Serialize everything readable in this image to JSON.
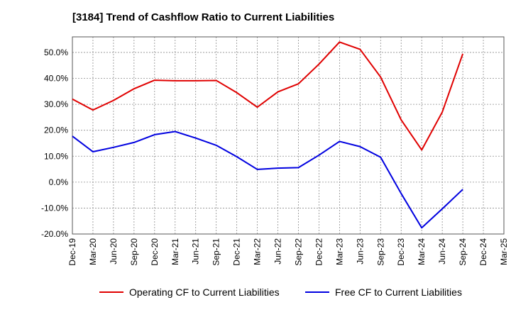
{
  "chart_data": {
    "type": "line",
    "title": "[3184]  Trend of Cashflow Ratio to Current Liabilities",
    "xlabel": "",
    "ylabel": "",
    "categories": [
      "Dec-19",
      "Mar-20",
      "Jun-20",
      "Sep-20",
      "Dec-20",
      "Mar-21",
      "Jun-21",
      "Sep-21",
      "Dec-21",
      "Mar-22",
      "Jun-22",
      "Sep-22",
      "Dec-22",
      "Mar-23",
      "Jun-23",
      "Sep-23",
      "Dec-23",
      "Mar-24",
      "Jun-24",
      "Sep-24",
      "Dec-24",
      "Mar-25"
    ],
    "ylim": [
      -20,
      56
    ],
    "yticks": [
      -20,
      -10,
      0,
      10,
      20,
      30,
      40,
      50
    ],
    "ytick_labels": [
      "-20.0%",
      "-10.0%",
      "0.0%",
      "10.0%",
      "20.0%",
      "30.0%",
      "40.0%",
      "50.0%"
    ],
    "grid": true,
    "legend_position": "bottom",
    "series": [
      {
        "name": "Operating CF to Current Liabilities",
        "color": "#e00000",
        "values": [
          32.0,
          27.8,
          31.5,
          36.0,
          39.3,
          39.1,
          39.1,
          39.2,
          34.5,
          28.9,
          34.8,
          37.9,
          45.5,
          54.0,
          51.2,
          40.5,
          24.0,
          12.4,
          27.0,
          49.5,
          null,
          null
        ]
      },
      {
        "name": "Free CF to Current Liabilities",
        "color": "#0000e0",
        "values": [
          17.7,
          11.7,
          13.4,
          15.3,
          18.3,
          19.5,
          17.0,
          14.2,
          9.8,
          4.9,
          5.4,
          5.6,
          10.4,
          15.7,
          13.7,
          9.6,
          -4.4,
          -17.6,
          -10.3,
          -2.8,
          null,
          null
        ]
      }
    ]
  }
}
